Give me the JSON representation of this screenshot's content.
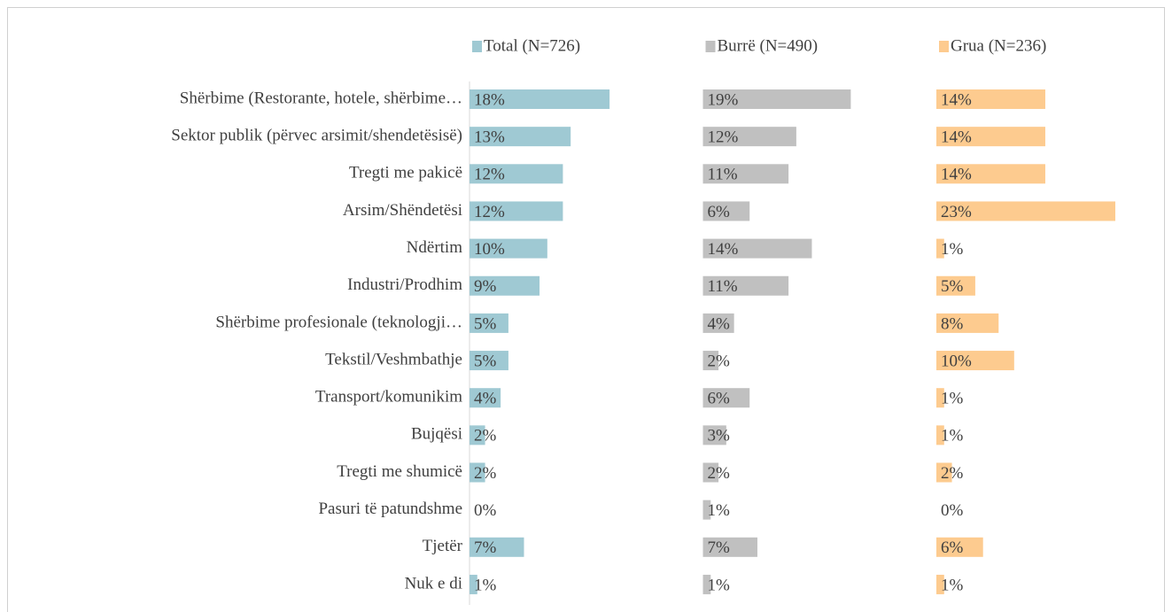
{
  "chart_data": {
    "type": "bar",
    "orientation": "horizontal",
    "categories": [
      "Shërbime (Restorante, hotele, shërbime…",
      "Sektor publik (përvec arsimit/shendetësisë)",
      "Tregti me pakicë",
      "Arsim/Shëndetësi",
      "Ndërtim",
      "Industri/Prodhim",
      "Shërbime profesionale (teknologji…",
      "Tekstil/Veshmbathje",
      "Transport/komunikim",
      "Bujqësi",
      "Tregti me shumicë",
      "Pasuri të patundshme",
      "Tjetër",
      "Nuk e di"
    ],
    "xlim": [
      0,
      30
    ],
    "series": [
      {
        "name": "Total (N=726)",
        "color": "#9fc9d3",
        "values": [
          18,
          13,
          12,
          12,
          10,
          9,
          5,
          5,
          4,
          2,
          2,
          0,
          7,
          1
        ],
        "value_labels": [
          "18%",
          "13%",
          "12%",
          "12%",
          "10%",
          "9%",
          "5%",
          "5%",
          "4%",
          "2%",
          "2%",
          "0%",
          "7%",
          "1%"
        ]
      },
      {
        "name": "Burrë (N=490)",
        "color": "#c0c0c0",
        "values": [
          19,
          12,
          11,
          6,
          14,
          11,
          4,
          2,
          6,
          3,
          2,
          1,
          7,
          1
        ],
        "value_labels": [
          "19%",
          "12%",
          "11%",
          "6%",
          "14%",
          "11%",
          "4%",
          "2%",
          "6%",
          "3%",
          "2%",
          "1%",
          "7%",
          "1%"
        ]
      },
      {
        "name": "Grua (N=236)",
        "color": "#fdcb8f",
        "values": [
          14,
          14,
          14,
          23,
          1,
          5,
          8,
          10,
          1,
          1,
          2,
          0,
          6,
          1
        ],
        "value_labels": [
          "14%",
          "14%",
          "14%",
          "23%",
          "1%",
          "5%",
          "8%",
          "10%",
          "1%",
          "1%",
          "2%",
          "0%",
          "6%",
          "1%"
        ]
      }
    ]
  }
}
